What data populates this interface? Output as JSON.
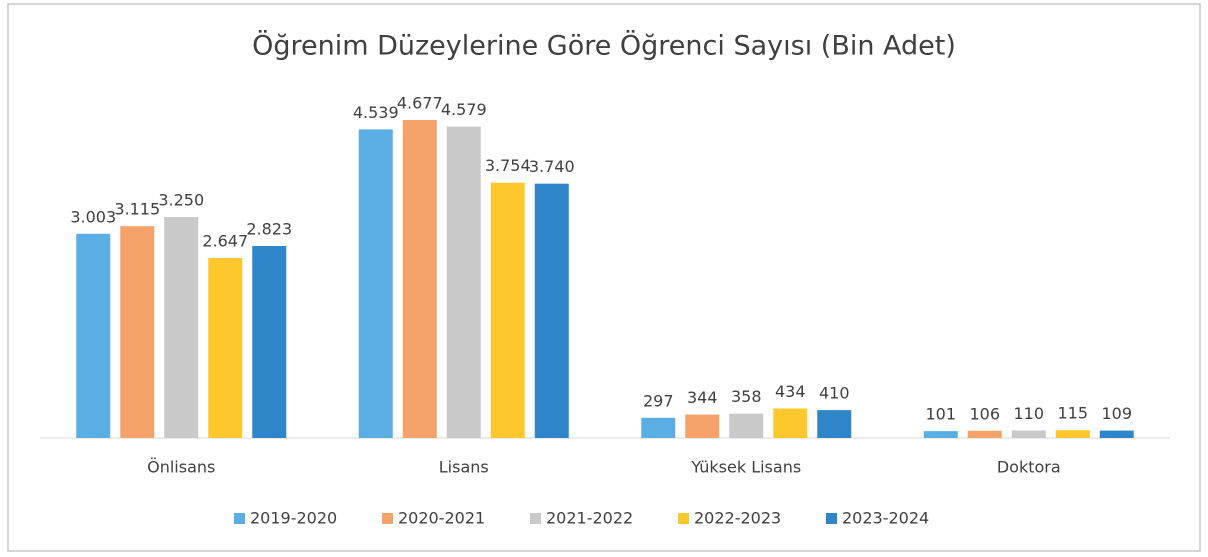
{
  "chart_data": {
    "type": "bar",
    "title": "Öğrenim Düzeylerine Göre Öğrenci Sayısı (Bin Adet)",
    "categories": [
      "Önlisans",
      "Lisans",
      "Yüksek Lisans",
      "Doktora"
    ],
    "series": [
      {
        "name": "2019-2020",
        "color": "#5aaee3",
        "values": [
          3003,
          4539,
          297,
          101
        ],
        "value_labels": [
          "3.003",
          "4.539",
          "297",
          "101"
        ]
      },
      {
        "name": "2020-2021",
        "color": "#f4a26a",
        "values": [
          3115,
          4677,
          344,
          106
        ],
        "value_labels": [
          "3.115",
          "4.677",
          "344",
          "106"
        ]
      },
      {
        "name": "2021-2022",
        "color": "#c9c9c9",
        "values": [
          3250,
          4579,
          358,
          110
        ],
        "value_labels": [
          "3.250",
          "4.579",
          "358",
          "110"
        ]
      },
      {
        "name": "2022-2023",
        "color": "#fdc82d",
        "values": [
          2647,
          3754,
          434,
          115
        ],
        "value_labels": [
          "2.647",
          "3.754",
          "434",
          "115"
        ]
      },
      {
        "name": "2023-2024",
        "color": "#2e86c8",
        "values": [
          2823,
          3740,
          410,
          109
        ],
        "value_labels": [
          "2.823",
          "3.740",
          "410",
          "109"
        ]
      }
    ],
    "ylim": [
      0,
      5000
    ],
    "legend": "bottom"
  }
}
